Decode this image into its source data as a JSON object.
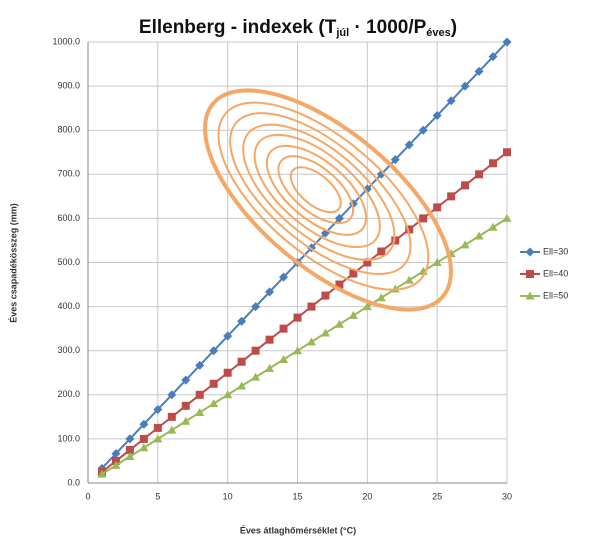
{
  "chart_data": {
    "type": "line",
    "title": [
      "Ellenberg - indexek (T",
      "júl",
      " · 1000/P",
      "éves",
      ")"
    ],
    "x_label": "Éves átlaghőmérséklet (°C)",
    "y_label": "Éves csapadékösszeg (mm)",
    "x": [
      1,
      2,
      3,
      4,
      5,
      6,
      7,
      8,
      9,
      10,
      11,
      12,
      13,
      14,
      15,
      16,
      17,
      18,
      19,
      20,
      21,
      22,
      23,
      24,
      25,
      26,
      27,
      28,
      29,
      30
    ],
    "series": [
      {
        "name": "Ell=30",
        "color": "#4a7ebb",
        "marker": "diamond",
        "values": [
          33.3,
          66.7,
          100,
          133.3,
          166.7,
          200,
          233.3,
          266.7,
          300,
          333.3,
          366.7,
          400,
          433.3,
          466.7,
          500,
          533.3,
          566.7,
          600,
          633.3,
          666.7,
          700,
          733.3,
          766.7,
          800,
          833.3,
          866.7,
          900,
          933.3,
          966.7,
          1000
        ]
      },
      {
        "name": "Ell=40",
        "color": "#be4b48",
        "marker": "square",
        "values": [
          25,
          50,
          75,
          100,
          125,
          150,
          175,
          200,
          225,
          250,
          275,
          300,
          325,
          350,
          375,
          400,
          425,
          450,
          475,
          500,
          525,
          550,
          575,
          600,
          625,
          650,
          675,
          700,
          725,
          750
        ]
      },
      {
        "name": "Ell=50",
        "color": "#98b954",
        "marker": "triangle",
        "values": [
          20,
          40,
          60,
          80,
          100,
          120,
          140,
          160,
          180,
          200,
          220,
          240,
          260,
          280,
          300,
          320,
          340,
          360,
          380,
          400,
          420,
          440,
          460,
          480,
          500,
          520,
          540,
          560,
          580,
          600
        ]
      }
    ],
    "xlim": [
      0,
      30
    ],
    "xticks": [
      0,
      5,
      10,
      15,
      20,
      25,
      30
    ],
    "ylim": [
      0,
      1000
    ],
    "yticks": [
      {
        "value": 0,
        "label": "0.0"
      },
      {
        "value": 100,
        "label": "100.0"
      },
      {
        "value": 200,
        "label": "200.0"
      },
      {
        "value": 300,
        "label": "300.0"
      },
      {
        "value": 400,
        "label": "400.0"
      },
      {
        "value": 500,
        "label": "500.0"
      },
      {
        "value": 600,
        "label": "600.0"
      },
      {
        "value": 700,
        "label": "700.0"
      },
      {
        "value": 800,
        "label": "800.0"
      },
      {
        "value": 900,
        "label": "900.0"
      },
      {
        "value": 1000,
        "label": "1000.0"
      }
    ],
    "grid": true,
    "legend": "right"
  }
}
